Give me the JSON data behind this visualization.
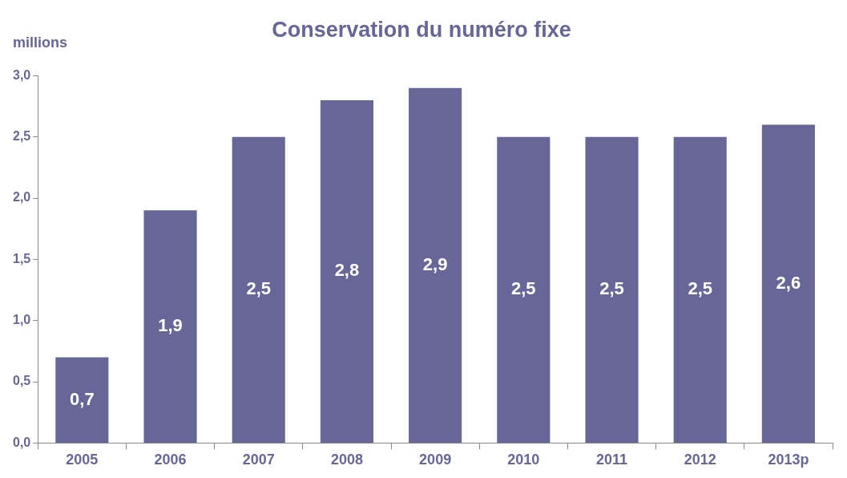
{
  "chart_data": {
    "type": "bar",
    "title": "Conservation du numéro fixe",
    "ylabel": "millions",
    "categories": [
      "2005",
      "2006",
      "2007",
      "2008",
      "2009",
      "2010",
      "2011",
      "2012",
      "2013p"
    ],
    "values": [
      0.7,
      1.9,
      2.5,
      2.8,
      2.9,
      2.5,
      2.5,
      2.5,
      2.6
    ],
    "value_labels": [
      "0,7",
      "1,9",
      "2,5",
      "2,8",
      "2,9",
      "2,5",
      "2,5",
      "2,5",
      "2,6"
    ],
    "color": "#666699",
    "ylim": [
      0,
      3
    ],
    "yticks": [
      {
        "value": 0,
        "label": "0,0"
      },
      {
        "value": 0.5,
        "label": "0,5"
      },
      {
        "value": 1,
        "label": "1,0"
      },
      {
        "value": 1.5,
        "label": "1,5"
      },
      {
        "value": 2,
        "label": "2,0"
      },
      {
        "value": 2.5,
        "label": "2,5"
      },
      {
        "value": 3,
        "label": "3,0"
      }
    ],
    "grid": false,
    "legend": false
  }
}
